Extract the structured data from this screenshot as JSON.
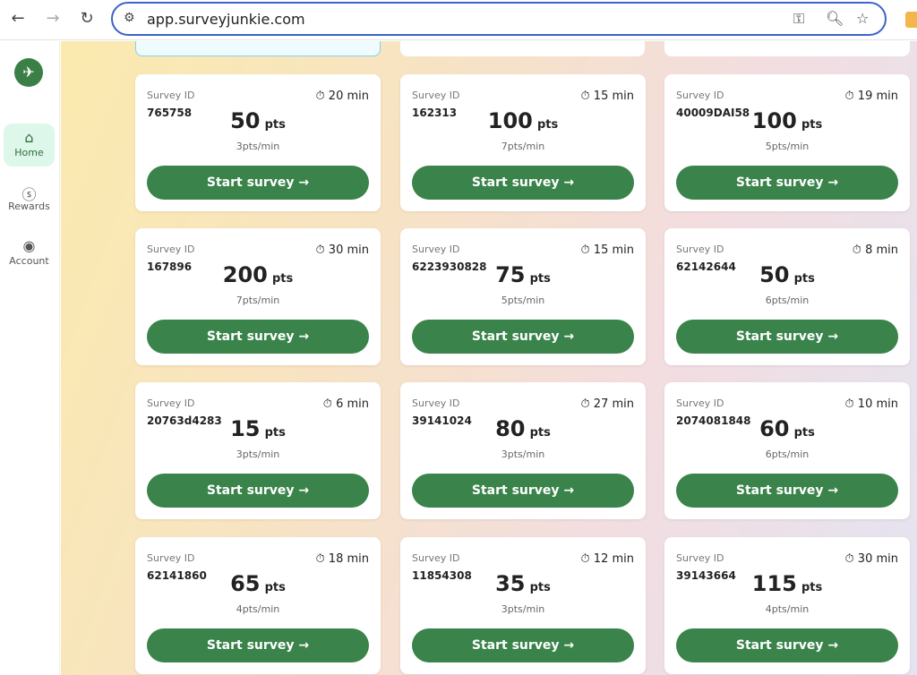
{
  "browser": {
    "url": "app.surveyjunkie.com"
  },
  "sidebar": {
    "items": [
      {
        "label": "Home",
        "icon": "home-icon"
      },
      {
        "label": "Rewards",
        "icon": "dollar-icon"
      },
      {
        "label": "Account",
        "icon": "account-icon"
      }
    ]
  },
  "colors": {
    "accent": "#3a834a",
    "active_bg": "#ddf8ea"
  },
  "card_labels": {
    "survey_id": "Survey ID",
    "pts_unit": "pts",
    "button": "Start survey →"
  },
  "surveys": [
    {
      "id": "765758",
      "minutes": "20 min",
      "points": "50",
      "rate": "3pts/min"
    },
    {
      "id": "162313",
      "minutes": "15 min",
      "points": "100",
      "rate": "7pts/min"
    },
    {
      "id": "40009DAI58",
      "minutes": "19 min",
      "points": "100",
      "rate": "5pts/min"
    },
    {
      "id": "167896",
      "minutes": "30 min",
      "points": "200",
      "rate": "7pts/min"
    },
    {
      "id": "6223930828",
      "minutes": "15 min",
      "points": "75",
      "rate": "5pts/min"
    },
    {
      "id": "62142644",
      "minutes": "8 min",
      "points": "50",
      "rate": "6pts/min"
    },
    {
      "id": "20763d4283",
      "minutes": "6 min",
      "points": "15",
      "rate": "3pts/min"
    },
    {
      "id": "39141024",
      "minutes": "27 min",
      "points": "80",
      "rate": "3pts/min"
    },
    {
      "id": "2074081848",
      "minutes": "10 min",
      "points": "60",
      "rate": "6pts/min"
    },
    {
      "id": "62141860",
      "minutes": "18 min",
      "points": "65",
      "rate": "4pts/min"
    },
    {
      "id": "11854308",
      "minutes": "12 min",
      "points": "35",
      "rate": "3pts/min"
    },
    {
      "id": "39143664",
      "minutes": "30 min",
      "points": "115",
      "rate": "4pts/min"
    }
  ]
}
